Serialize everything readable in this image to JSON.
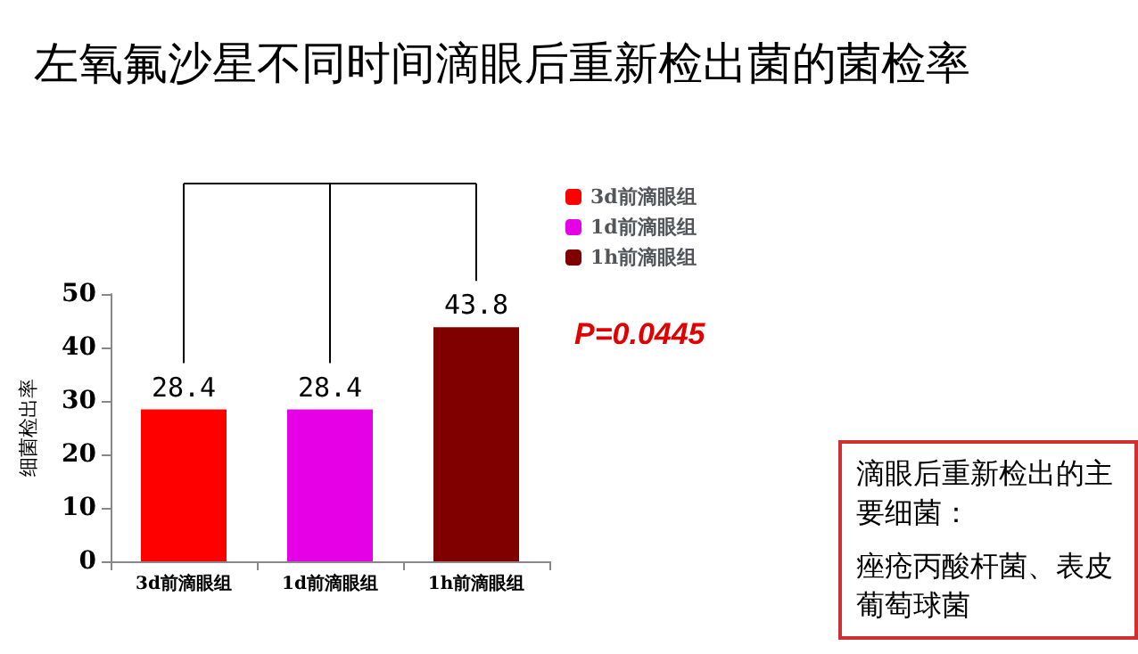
{
  "chart_data": {
    "type": "bar",
    "title": "左氧氟沙星不同时间滴眼后重新检出菌的菌检率",
    "ylabel": "细菌检出率",
    "categories": [
      "3d前滴眼组",
      "1d前滴眼组",
      "1h前滴眼组"
    ],
    "series": [
      {
        "name": "3d前滴眼组",
        "color": "#ff0000",
        "values": [
          28.4,
          null,
          null
        ]
      },
      {
        "name": "1d前滴眼组",
        "color": "#e600e6",
        "values": [
          null,
          28.4,
          null
        ]
      },
      {
        "name": "1h前滴眼组",
        "color": "#800000",
        "values": [
          null,
          null,
          43.8
        ]
      }
    ],
    "stacked": true,
    "ylim": [
      0,
      50
    ],
    "yticks": [
      0,
      10,
      20,
      30,
      40,
      50
    ],
    "grid": false,
    "legend": "top right",
    "data_labels": true,
    "annotations": [
      "P=0.0445",
      "滴眼后重新检出的主要细菌：",
      "痤疮丙酸杆菌、表皮葡萄球菌"
    ]
  }
}
